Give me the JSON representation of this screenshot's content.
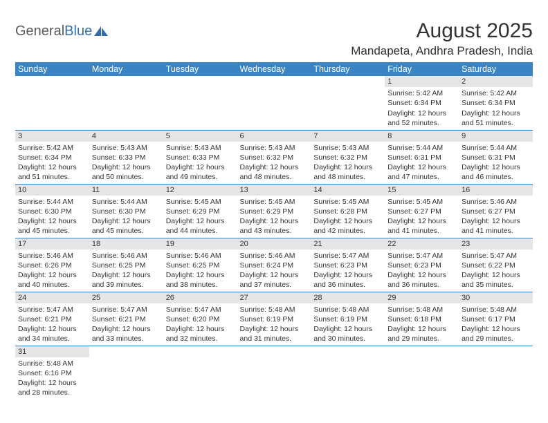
{
  "brand": {
    "part1": "General",
    "part2": "Blue"
  },
  "title": "August 2025",
  "location": "Mandapeta, Andhra Pradesh, India",
  "theme": {
    "header_bg": "#3b84c4",
    "header_fg": "#ffffff",
    "daynum_bg": "#e5e5e5",
    "text_color": "#333333",
    "rule_color": "#3b84c4",
    "page_bg": "#ffffff",
    "logo_gray": "#5a5a5a",
    "logo_blue": "#2f6fb0"
  },
  "columns": [
    "Sunday",
    "Monday",
    "Tuesday",
    "Wednesday",
    "Thursday",
    "Friday",
    "Saturday"
  ],
  "weeks": [
    [
      null,
      null,
      null,
      null,
      null,
      {
        "n": "1",
        "sunrise": "Sunrise: 5:42 AM",
        "sunset": "Sunset: 6:34 PM",
        "day1": "Daylight: 12 hours",
        "day2": "and 52 minutes."
      },
      {
        "n": "2",
        "sunrise": "Sunrise: 5:42 AM",
        "sunset": "Sunset: 6:34 PM",
        "day1": "Daylight: 12 hours",
        "day2": "and 51 minutes."
      }
    ],
    [
      {
        "n": "3",
        "sunrise": "Sunrise: 5:42 AM",
        "sunset": "Sunset: 6:34 PM",
        "day1": "Daylight: 12 hours",
        "day2": "and 51 minutes."
      },
      {
        "n": "4",
        "sunrise": "Sunrise: 5:43 AM",
        "sunset": "Sunset: 6:33 PM",
        "day1": "Daylight: 12 hours",
        "day2": "and 50 minutes."
      },
      {
        "n": "5",
        "sunrise": "Sunrise: 5:43 AM",
        "sunset": "Sunset: 6:33 PM",
        "day1": "Daylight: 12 hours",
        "day2": "and 49 minutes."
      },
      {
        "n": "6",
        "sunrise": "Sunrise: 5:43 AM",
        "sunset": "Sunset: 6:32 PM",
        "day1": "Daylight: 12 hours",
        "day2": "and 48 minutes."
      },
      {
        "n": "7",
        "sunrise": "Sunrise: 5:43 AM",
        "sunset": "Sunset: 6:32 PM",
        "day1": "Daylight: 12 hours",
        "day2": "and 48 minutes."
      },
      {
        "n": "8",
        "sunrise": "Sunrise: 5:44 AM",
        "sunset": "Sunset: 6:31 PM",
        "day1": "Daylight: 12 hours",
        "day2": "and 47 minutes."
      },
      {
        "n": "9",
        "sunrise": "Sunrise: 5:44 AM",
        "sunset": "Sunset: 6:31 PM",
        "day1": "Daylight: 12 hours",
        "day2": "and 46 minutes."
      }
    ],
    [
      {
        "n": "10",
        "sunrise": "Sunrise: 5:44 AM",
        "sunset": "Sunset: 6:30 PM",
        "day1": "Daylight: 12 hours",
        "day2": "and 45 minutes."
      },
      {
        "n": "11",
        "sunrise": "Sunrise: 5:44 AM",
        "sunset": "Sunset: 6:30 PM",
        "day1": "Daylight: 12 hours",
        "day2": "and 45 minutes."
      },
      {
        "n": "12",
        "sunrise": "Sunrise: 5:45 AM",
        "sunset": "Sunset: 6:29 PM",
        "day1": "Daylight: 12 hours",
        "day2": "and 44 minutes."
      },
      {
        "n": "13",
        "sunrise": "Sunrise: 5:45 AM",
        "sunset": "Sunset: 6:29 PM",
        "day1": "Daylight: 12 hours",
        "day2": "and 43 minutes."
      },
      {
        "n": "14",
        "sunrise": "Sunrise: 5:45 AM",
        "sunset": "Sunset: 6:28 PM",
        "day1": "Daylight: 12 hours",
        "day2": "and 42 minutes."
      },
      {
        "n": "15",
        "sunrise": "Sunrise: 5:45 AM",
        "sunset": "Sunset: 6:27 PM",
        "day1": "Daylight: 12 hours",
        "day2": "and 41 minutes."
      },
      {
        "n": "16",
        "sunrise": "Sunrise: 5:46 AM",
        "sunset": "Sunset: 6:27 PM",
        "day1": "Daylight: 12 hours",
        "day2": "and 41 minutes."
      }
    ],
    [
      {
        "n": "17",
        "sunrise": "Sunrise: 5:46 AM",
        "sunset": "Sunset: 6:26 PM",
        "day1": "Daylight: 12 hours",
        "day2": "and 40 minutes."
      },
      {
        "n": "18",
        "sunrise": "Sunrise: 5:46 AM",
        "sunset": "Sunset: 6:25 PM",
        "day1": "Daylight: 12 hours",
        "day2": "and 39 minutes."
      },
      {
        "n": "19",
        "sunrise": "Sunrise: 5:46 AM",
        "sunset": "Sunset: 6:25 PM",
        "day1": "Daylight: 12 hours",
        "day2": "and 38 minutes."
      },
      {
        "n": "20",
        "sunrise": "Sunrise: 5:46 AM",
        "sunset": "Sunset: 6:24 PM",
        "day1": "Daylight: 12 hours",
        "day2": "and 37 minutes."
      },
      {
        "n": "21",
        "sunrise": "Sunrise: 5:47 AM",
        "sunset": "Sunset: 6:23 PM",
        "day1": "Daylight: 12 hours",
        "day2": "and 36 minutes."
      },
      {
        "n": "22",
        "sunrise": "Sunrise: 5:47 AM",
        "sunset": "Sunset: 6:23 PM",
        "day1": "Daylight: 12 hours",
        "day2": "and 36 minutes."
      },
      {
        "n": "23",
        "sunrise": "Sunrise: 5:47 AM",
        "sunset": "Sunset: 6:22 PM",
        "day1": "Daylight: 12 hours",
        "day2": "and 35 minutes."
      }
    ],
    [
      {
        "n": "24",
        "sunrise": "Sunrise: 5:47 AM",
        "sunset": "Sunset: 6:21 PM",
        "day1": "Daylight: 12 hours",
        "day2": "and 34 minutes."
      },
      {
        "n": "25",
        "sunrise": "Sunrise: 5:47 AM",
        "sunset": "Sunset: 6:21 PM",
        "day1": "Daylight: 12 hours",
        "day2": "and 33 minutes."
      },
      {
        "n": "26",
        "sunrise": "Sunrise: 5:47 AM",
        "sunset": "Sunset: 6:20 PM",
        "day1": "Daylight: 12 hours",
        "day2": "and 32 minutes."
      },
      {
        "n": "27",
        "sunrise": "Sunrise: 5:48 AM",
        "sunset": "Sunset: 6:19 PM",
        "day1": "Daylight: 12 hours",
        "day2": "and 31 minutes."
      },
      {
        "n": "28",
        "sunrise": "Sunrise: 5:48 AM",
        "sunset": "Sunset: 6:19 PM",
        "day1": "Daylight: 12 hours",
        "day2": "and 30 minutes."
      },
      {
        "n": "29",
        "sunrise": "Sunrise: 5:48 AM",
        "sunset": "Sunset: 6:18 PM",
        "day1": "Daylight: 12 hours",
        "day2": "and 29 minutes."
      },
      {
        "n": "30",
        "sunrise": "Sunrise: 5:48 AM",
        "sunset": "Sunset: 6:17 PM",
        "day1": "Daylight: 12 hours",
        "day2": "and 29 minutes."
      }
    ],
    [
      {
        "n": "31",
        "sunrise": "Sunrise: 5:48 AM",
        "sunset": "Sunset: 6:16 PM",
        "day1": "Daylight: 12 hours",
        "day2": "and 28 minutes."
      },
      null,
      null,
      null,
      null,
      null,
      null
    ]
  ]
}
